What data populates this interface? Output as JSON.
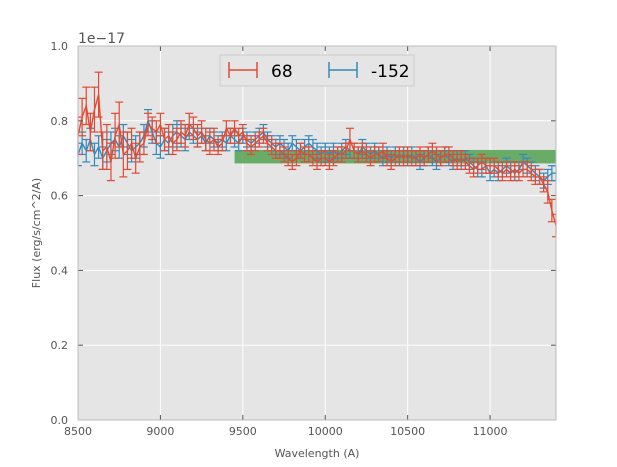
{
  "chart_data": {
    "type": "line",
    "xlabel": "Wavelength (A)",
    "ylabel": "Flux (erg/s/cm^2/A)",
    "offset_text": "1e−17",
    "xlim": [
      8500,
      11400
    ],
    "ylim": [
      0.0,
      1.0
    ],
    "x_ticks": [
      8500,
      9000,
      9500,
      10000,
      10500,
      11000
    ],
    "y_ticks": [
      0.0,
      0.2,
      0.4,
      0.6,
      0.8,
      1.0
    ],
    "x_tick_labels": [
      "8500",
      "9000",
      "9500",
      "10000",
      "10500",
      "11000"
    ],
    "y_tick_labels": [
      "0.0",
      "0.2",
      "0.4",
      "0.6",
      "0.8",
      "1.0"
    ],
    "grid": true,
    "legend_position": "top-center",
    "background": "#e5e5e5",
    "band": {
      "x_start": 9450,
      "x_end": 11400,
      "y_low": 0.686,
      "y_high": 0.722,
      "color": "#5aa55a"
    },
    "series": [
      {
        "name": "68",
        "color": "#e24a33",
        "x": [
          8500,
          8525,
          8550,
          8575,
          8600,
          8625,
          8650,
          8675,
          8700,
          8725,
          8750,
          8775,
          8800,
          8825,
          8850,
          8875,
          8900,
          8925,
          8950,
          8975,
          9000,
          9025,
          9050,
          9075,
          9100,
          9125,
          9150,
          9175,
          9200,
          9225,
          9250,
          9275,
          9300,
          9325,
          9350,
          9375,
          9400,
          9425,
          9450,
          9475,
          9500,
          9525,
          9550,
          9575,
          9600,
          9625,
          9650,
          9675,
          9700,
          9725,
          9750,
          9775,
          9800,
          9825,
          9850,
          9875,
          9900,
          9925,
          9950,
          9975,
          10000,
          10025,
          10050,
          10075,
          10100,
          10125,
          10150,
          10175,
          10200,
          10225,
          10250,
          10275,
          10300,
          10325,
          10350,
          10375,
          10400,
          10425,
          10450,
          10475,
          10500,
          10525,
          10550,
          10575,
          10600,
          10625,
          10650,
          10675,
          10700,
          10725,
          10750,
          10775,
          10800,
          10825,
          10850,
          10875,
          10900,
          10925,
          10950,
          10975,
          11000,
          11025,
          11050,
          11075,
          11100,
          11125,
          11150,
          11175,
          11200,
          11225,
          11250,
          11275,
          11300,
          11325,
          11350,
          11375,
          11400
        ],
        "y": [
          0.76,
          0.81,
          0.84,
          0.77,
          0.83,
          0.87,
          0.72,
          0.73,
          0.69,
          0.76,
          0.79,
          0.71,
          0.72,
          0.74,
          0.7,
          0.73,
          0.74,
          0.79,
          0.78,
          0.77,
          0.79,
          0.75,
          0.76,
          0.74,
          0.75,
          0.77,
          0.76,
          0.79,
          0.78,
          0.76,
          0.77,
          0.75,
          0.74,
          0.75,
          0.73,
          0.74,
          0.78,
          0.76,
          0.78,
          0.76,
          0.77,
          0.74,
          0.73,
          0.74,
          0.75,
          0.76,
          0.74,
          0.73,
          0.72,
          0.72,
          0.71,
          0.7,
          0.69,
          0.7,
          0.72,
          0.71,
          0.71,
          0.7,
          0.69,
          0.7,
          0.7,
          0.69,
          0.7,
          0.71,
          0.71,
          0.72,
          0.75,
          0.72,
          0.71,
          0.72,
          0.71,
          0.7,
          0.71,
          0.71,
          0.72,
          0.7,
          0.69,
          0.7,
          0.71,
          0.7,
          0.71,
          0.7,
          0.7,
          0.71,
          0.7,
          0.71,
          0.72,
          0.71,
          0.7,
          0.71,
          0.71,
          0.7,
          0.69,
          0.7,
          0.69,
          0.68,
          0.67,
          0.68,
          0.69,
          0.68,
          0.68,
          0.68,
          0.67,
          0.66,
          0.67,
          0.66,
          0.67,
          0.66,
          0.67,
          0.67,
          0.66,
          0.65,
          0.65,
          0.63,
          0.61,
          0.56,
          0.52
        ],
        "err": [
          0.05,
          0.05,
          0.05,
          0.05,
          0.06,
          0.06,
          0.05,
          0.06,
          0.05,
          0.06,
          0.06,
          0.06,
          0.05,
          0.04,
          0.04,
          0.04,
          0.03,
          0.03,
          0.03,
          0.03,
          0.03,
          0.03,
          0.03,
          0.03,
          0.03,
          0.03,
          0.03,
          0.03,
          0.03,
          0.03,
          0.03,
          0.03,
          0.03,
          0.03,
          0.02,
          0.02,
          0.02,
          0.02,
          0.02,
          0.02,
          0.02,
          0.02,
          0.02,
          0.02,
          0.02,
          0.02,
          0.02,
          0.02,
          0.02,
          0.02,
          0.02,
          0.02,
          0.02,
          0.02,
          0.02,
          0.02,
          0.02,
          0.02,
          0.02,
          0.02,
          0.02,
          0.02,
          0.02,
          0.02,
          0.02,
          0.02,
          0.03,
          0.02,
          0.02,
          0.02,
          0.02,
          0.02,
          0.02,
          0.02,
          0.02,
          0.02,
          0.02,
          0.02,
          0.02,
          0.02,
          0.02,
          0.02,
          0.02,
          0.02,
          0.02,
          0.02,
          0.02,
          0.02,
          0.02,
          0.02,
          0.02,
          0.02,
          0.02,
          0.02,
          0.02,
          0.02,
          0.02,
          0.02,
          0.02,
          0.02,
          0.02,
          0.02,
          0.02,
          0.02,
          0.02,
          0.02,
          0.02,
          0.02,
          0.02,
          0.02,
          0.02,
          0.02,
          0.02,
          0.02,
          0.03,
          0.03,
          0.03
        ]
      },
      {
        "name": "-152",
        "color": "#348abd",
        "x": [
          8500,
          8525,
          8550,
          8575,
          8600,
          8625,
          8650,
          8675,
          8700,
          8725,
          8750,
          8775,
          8800,
          8825,
          8850,
          8875,
          8900,
          8925,
          8950,
          8975,
          9000,
          9025,
          9050,
          9075,
          9100,
          9125,
          9150,
          9175,
          9200,
          9225,
          9250,
          9275,
          9300,
          9325,
          9350,
          9375,
          9400,
          9425,
          9450,
          9475,
          9500,
          9525,
          9550,
          9575,
          9600,
          9625,
          9650,
          9675,
          9700,
          9725,
          9750,
          9775,
          9800,
          9825,
          9850,
          9875,
          9900,
          9925,
          9950,
          9975,
          10000,
          10025,
          10050,
          10075,
          10100,
          10125,
          10150,
          10175,
          10200,
          10225,
          10250,
          10275,
          10300,
          10325,
          10350,
          10375,
          10400,
          10425,
          10450,
          10475,
          10500,
          10525,
          10550,
          10575,
          10600,
          10625,
          10650,
          10675,
          10700,
          10725,
          10750,
          10775,
          10800,
          10825,
          10850,
          10875,
          10900,
          10925,
          10950,
          10975,
          11000,
          11025,
          11050,
          11075,
          11100,
          11125,
          11150,
          11175,
          11200,
          11225,
          11250,
          11275,
          11300,
          11325,
          11350,
          11375,
          11400
        ],
        "y": [
          0.71,
          0.74,
          0.72,
          0.75,
          0.71,
          0.73,
          0.7,
          0.72,
          0.74,
          0.75,
          0.73,
          0.76,
          0.74,
          0.72,
          0.73,
          0.74,
          0.76,
          0.8,
          0.77,
          0.74,
          0.73,
          0.75,
          0.74,
          0.76,
          0.77,
          0.76,
          0.75,
          0.77,
          0.76,
          0.75,
          0.76,
          0.74,
          0.76,
          0.75,
          0.74,
          0.75,
          0.74,
          0.76,
          0.75,
          0.74,
          0.76,
          0.75,
          0.74,
          0.75,
          0.76,
          0.77,
          0.75,
          0.74,
          0.73,
          0.74,
          0.73,
          0.72,
          0.74,
          0.73,
          0.72,
          0.73,
          0.74,
          0.73,
          0.72,
          0.71,
          0.72,
          0.71,
          0.72,
          0.71,
          0.72,
          0.73,
          0.72,
          0.72,
          0.71,
          0.73,
          0.72,
          0.71,
          0.72,
          0.71,
          0.7,
          0.71,
          0.7,
          0.71,
          0.7,
          0.71,
          0.7,
          0.71,
          0.7,
          0.69,
          0.7,
          0.71,
          0.7,
          0.69,
          0.7,
          0.71,
          0.7,
          0.69,
          0.7,
          0.69,
          0.7,
          0.69,
          0.68,
          0.67,
          0.67,
          0.68,
          0.66,
          0.67,
          0.66,
          0.67,
          0.68,
          0.67,
          0.66,
          0.67,
          0.69,
          0.68,
          0.67,
          0.66,
          0.65,
          0.64,
          0.65,
          0.66,
          0.66
        ],
        "err": [
          0.03,
          0.03,
          0.03,
          0.03,
          0.03,
          0.03,
          0.03,
          0.03,
          0.03,
          0.03,
          0.03,
          0.03,
          0.03,
          0.03,
          0.03,
          0.03,
          0.03,
          0.03,
          0.03,
          0.03,
          0.03,
          0.03,
          0.03,
          0.03,
          0.03,
          0.03,
          0.03,
          0.02,
          0.02,
          0.02,
          0.02,
          0.02,
          0.02,
          0.02,
          0.02,
          0.02,
          0.02,
          0.02,
          0.02,
          0.02,
          0.02,
          0.02,
          0.02,
          0.02,
          0.02,
          0.02,
          0.02,
          0.02,
          0.02,
          0.02,
          0.02,
          0.02,
          0.02,
          0.02,
          0.02,
          0.02,
          0.02,
          0.02,
          0.02,
          0.02,
          0.02,
          0.02,
          0.02,
          0.02,
          0.02,
          0.02,
          0.02,
          0.02,
          0.02,
          0.02,
          0.02,
          0.02,
          0.02,
          0.02,
          0.02,
          0.02,
          0.02,
          0.02,
          0.02,
          0.02,
          0.02,
          0.02,
          0.02,
          0.02,
          0.02,
          0.02,
          0.02,
          0.02,
          0.02,
          0.02,
          0.02,
          0.02,
          0.02,
          0.02,
          0.02,
          0.02,
          0.02,
          0.02,
          0.02,
          0.02,
          0.02,
          0.02,
          0.02,
          0.02,
          0.02,
          0.02,
          0.02,
          0.02,
          0.02,
          0.02,
          0.02,
          0.02,
          0.02,
          0.02,
          0.02,
          0.02,
          0.02
        ]
      }
    ]
  }
}
